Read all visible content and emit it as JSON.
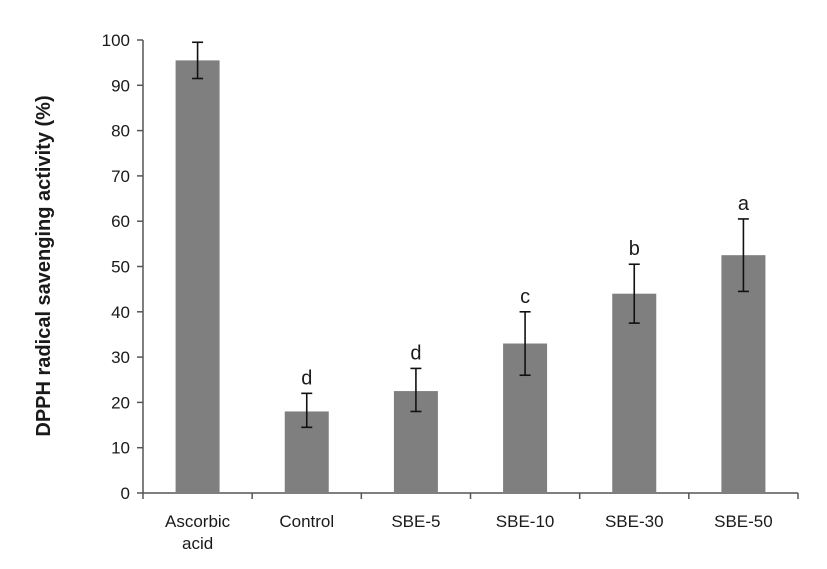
{
  "chart_data": {
    "type": "bar",
    "title": "",
    "xlabel": "",
    "ylabel": "DPPH radical savenging activity (%)",
    "ylim": [
      0,
      100
    ],
    "yticks": [
      0,
      10,
      20,
      30,
      40,
      50,
      60,
      70,
      80,
      90,
      100
    ],
    "grid": false,
    "categories": [
      [
        "Ascorbic",
        "acid"
      ],
      [
        "Control"
      ],
      [
        "SBE-5"
      ],
      [
        "SBE-10"
      ],
      [
        "SBE-30"
      ],
      [
        "SBE-50"
      ]
    ],
    "values": [
      95.5,
      18.0,
      22.5,
      33.0,
      44.0,
      52.5
    ],
    "error_low": [
      91.5,
      14.5,
      18.0,
      26.0,
      37.5,
      44.5
    ],
    "error_high": [
      99.5,
      22.0,
      27.5,
      40.0,
      50.5,
      60.5
    ],
    "significance_labels": [
      "",
      "d",
      "d",
      "c",
      "b",
      "a"
    ],
    "bar_color": "#7f7f7f",
    "axis_color": "#555555"
  }
}
